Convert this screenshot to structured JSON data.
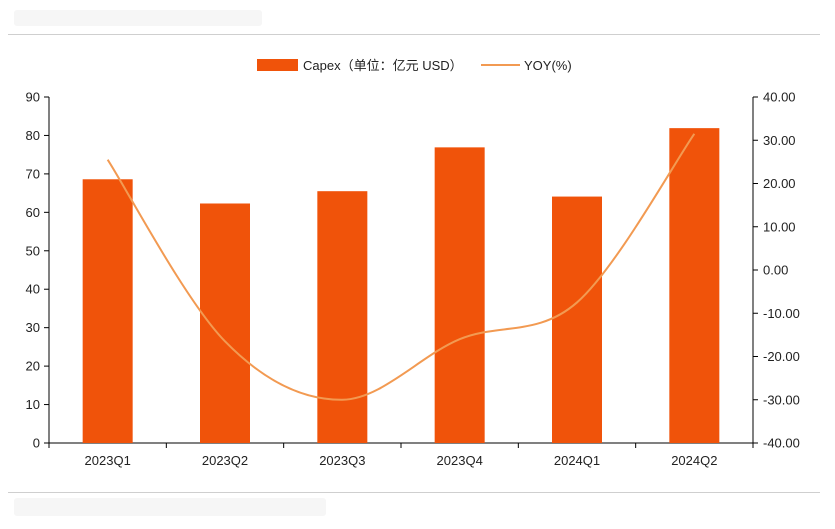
{
  "chart_data": {
    "type": "bar",
    "categories": [
      "2023Q1",
      "2023Q2",
      "2023Q3",
      "2023Q4",
      "2024Q1",
      "2024Q2"
    ],
    "series": [
      {
        "name": "Capex（单位：亿元 USD）",
        "type": "bar",
        "axis": "left",
        "color": "#f0530a",
        "values": [
          68.6,
          62.3,
          65.5,
          76.9,
          64.1,
          81.9
        ]
      },
      {
        "name": "YOY(%)",
        "type": "line",
        "axis": "right",
        "color": "#f29a52",
        "values": [
          25.5,
          -16.5,
          -30.0,
          -16.0,
          -7.5,
          31.5
        ]
      }
    ],
    "left_axis": {
      "ylim": [
        0,
        90
      ],
      "ticks": [
        "0",
        "10",
        "20",
        "30",
        "40",
        "50",
        "60",
        "70",
        "80",
        "90"
      ]
    },
    "right_axis": {
      "ylim": [
        -40,
        40
      ],
      "ticks": [
        "-40.00",
        "-30.00",
        "-20.00",
        "-10.00",
        "0.00",
        "10.00",
        "20.00",
        "30.00",
        "40.00"
      ]
    },
    "legend_position": "top-center",
    "grid": false
  }
}
